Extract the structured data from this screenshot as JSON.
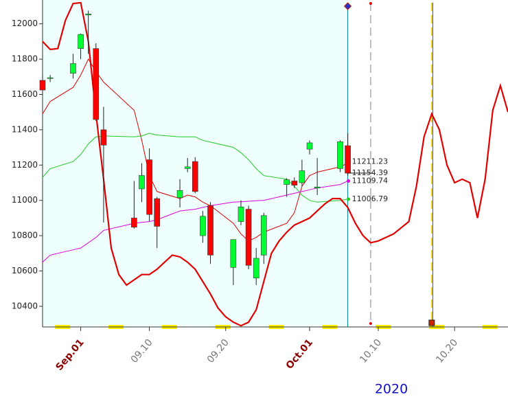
{
  "chart_data": {
    "type": "candlestick",
    "x": [
      "2020-08-27",
      "2020-08-28",
      "2020-08-31",
      "2020-09-01",
      "2020-09-02",
      "2020-09-03",
      "2020-09-04",
      "2020-09-08",
      "2020-09-09",
      "2020-09-10",
      "2020-09-11",
      "2020-09-14",
      "2020-09-15",
      "2020-09-16",
      "2020-09-17",
      "2020-09-18",
      "2020-09-21",
      "2020-09-22",
      "2020-09-23",
      "2020-09-24",
      "2020-09-25",
      "2020-09-28",
      "2020-09-29",
      "2020-09-30",
      "2020-10-01",
      "2020-10-02",
      "2020-10-05",
      "2020-10-06"
    ],
    "open": [
      11680,
      11690,
      11720,
      11860,
      12050,
      11860,
      11400,
      10900,
      11065,
      11230,
      11010,
      11015,
      11180,
      11220,
      10800,
      10970,
      10620,
      10880,
      10950,
      10560,
      10690,
      11090,
      11110,
      11100,
      11290,
      11070,
      11180,
      11310
    ],
    "high": [
      11720,
      11710,
      11830,
      11945,
      12075,
      11890,
      11530,
      11110,
      11210,
      11295,
      11020,
      11120,
      11240,
      11245,
      10940,
      10990,
      10780,
      11000,
      10970,
      10730,
      10930,
      11125,
      11130,
      11230,
      11340,
      11240,
      11340,
      11380
    ],
    "low": [
      11600,
      11670,
      11690,
      11800,
      11830,
      11450,
      10875,
      10840,
      10990,
      10880,
      10730,
      10960,
      11160,
      11040,
      10760,
      10640,
      10520,
      10860,
      10610,
      10520,
      10640,
      11020,
      11070,
      11080,
      11260,
      11030,
      11160,
      11140
    ],
    "close": [
      11625,
      11695,
      11775,
      11940,
      12056,
      11458,
      11313,
      10848,
      11141,
      10920,
      10853,
      11056,
      11190,
      11050,
      10910,
      10690,
      10778,
      10963,
      10632,
      10672,
      10914,
      11117,
      11086,
      11168,
      11326,
      11076,
      11332,
      11154.39
    ],
    "up_color": "#00ff33",
    "down_color": "#ff0000",
    "lines": [
      {
        "color": "#dd0000",
        "width": 1,
        "values": [
          11490,
          11560,
          11640,
          11710,
          11800,
          11730,
          11670,
          11510,
          11340,
          11140,
          11050,
          11010,
          11030,
          11020,
          10990,
          10970,
          10870,
          10810,
          10770,
          10790,
          10820,
          10870,
          10930,
          11080,
          11140,
          11160,
          11190,
          11211.23
        ]
      },
      {
        "color": "#22cc22",
        "width": 1,
        "values": [
          11130,
          11180,
          11220,
          11260,
          11320,
          11360,
          11365,
          11360,
          11365,
          11380,
          11370,
          11360,
          11360,
          11360,
          11340,
          11330,
          11300,
          11270,
          11230,
          11180,
          11140,
          11120,
          11080,
          11030,
          11000,
          10990,
          11000,
          11006.79
        ]
      },
      {
        "color": "#dd00dd",
        "width": 1,
        "values": [
          10650,
          10690,
          10720,
          10730,
          10760,
          10790,
          10830,
          10870,
          10875,
          10880,
          10890,
          10940,
          10945,
          10950,
          10960,
          10970,
          10990,
          10992,
          10995,
          10998,
          11000,
          11030,
          11040,
          11050,
          11060,
          11070,
          11090,
          11109.74
        ]
      },
      {
        "color": "#e00000",
        "width": 2.2,
        "x": [
          "2020-08-27",
          "2020-08-28",
          "2020-08-29",
          "2020-08-30",
          "2020-08-31",
          "2020-09-01",
          "2020-09-02",
          "2020-09-03",
          "2020-09-04",
          "2020-09-05",
          "2020-09-06",
          "2020-09-07",
          "2020-09-08",
          "2020-09-09",
          "2020-09-10",
          "2020-09-11",
          "2020-09-12",
          "2020-09-13",
          "2020-09-14",
          "2020-09-15",
          "2020-09-16",
          "2020-09-17",
          "2020-09-18",
          "2020-09-19",
          "2020-09-20",
          "2020-09-21",
          "2020-09-22",
          "2020-09-23",
          "2020-09-24",
          "2020-09-25",
          "2020-09-26",
          "2020-09-27",
          "2020-09-28",
          "2020-09-29",
          "2020-09-30",
          "2020-10-01",
          "2020-10-02",
          "2020-10-03",
          "2020-10-04",
          "2020-10-05",
          "2020-10-06",
          "2020-10-07",
          "2020-10-08",
          "2020-10-09",
          "2020-10-10",
          "2020-10-12",
          "2020-10-14",
          "2020-10-15",
          "2020-10-16",
          "2020-10-17",
          "2020-10-18",
          "2020-10-19",
          "2020-10-20",
          "2020-10-21",
          "2020-10-22",
          "2020-10-23",
          "2020-10-24",
          "2020-10-25",
          "2020-10-26",
          "2020-10-27"
        ],
        "values": [
          11900,
          11855,
          11860,
          12020,
          12115,
          12120,
          11900,
          11490,
          11120,
          10730,
          10580,
          10520,
          10550,
          10580,
          10580,
          10610,
          10650,
          10690,
          10680,
          10650,
          10610,
          10540,
          10470,
          10390,
          10340,
          10310,
          10290,
          10310,
          10380,
          10540,
          10700,
          10770,
          10820,
          10860,
          10880,
          10900,
          10940,
          10980,
          11010,
          11010,
          10960,
          10870,
          10800,
          10760,
          10770,
          10810,
          10880,
          11080,
          11360,
          11490,
          11400,
          11200,
          11100,
          11120,
          11100,
          10900,
          11120,
          11510,
          11650,
          11500
        ]
      }
    ],
    "vlines": [
      {
        "x": "2020-10-09",
        "color": "#aaaaaa"
      },
      {
        "x": "2020-10-17",
        "color": "#e8c800"
      }
    ],
    "xlim": [
      "2020-08-27",
      "2020-10-27"
    ],
    "xticks": [
      {
        "value": "2020-09-01",
        "label": "Sep.01"
      },
      {
        "value": "2020-09-10",
        "label": "09.10"
      },
      {
        "value": "2020-09-20",
        "label": "09.20"
      },
      {
        "value": "2020-10-01",
        "label": "Oct.01"
      },
      {
        "value": "2020-10-10",
        "label": "10.10"
      },
      {
        "value": "2020-10-20",
        "label": "10.20"
      }
    ],
    "ylim": [
      10283,
      12135
    ],
    "yticks": [
      10400,
      10600,
      10800,
      11000,
      11200,
      11400,
      11600,
      11800,
      12000
    ],
    "year_label": "2020"
  }
}
